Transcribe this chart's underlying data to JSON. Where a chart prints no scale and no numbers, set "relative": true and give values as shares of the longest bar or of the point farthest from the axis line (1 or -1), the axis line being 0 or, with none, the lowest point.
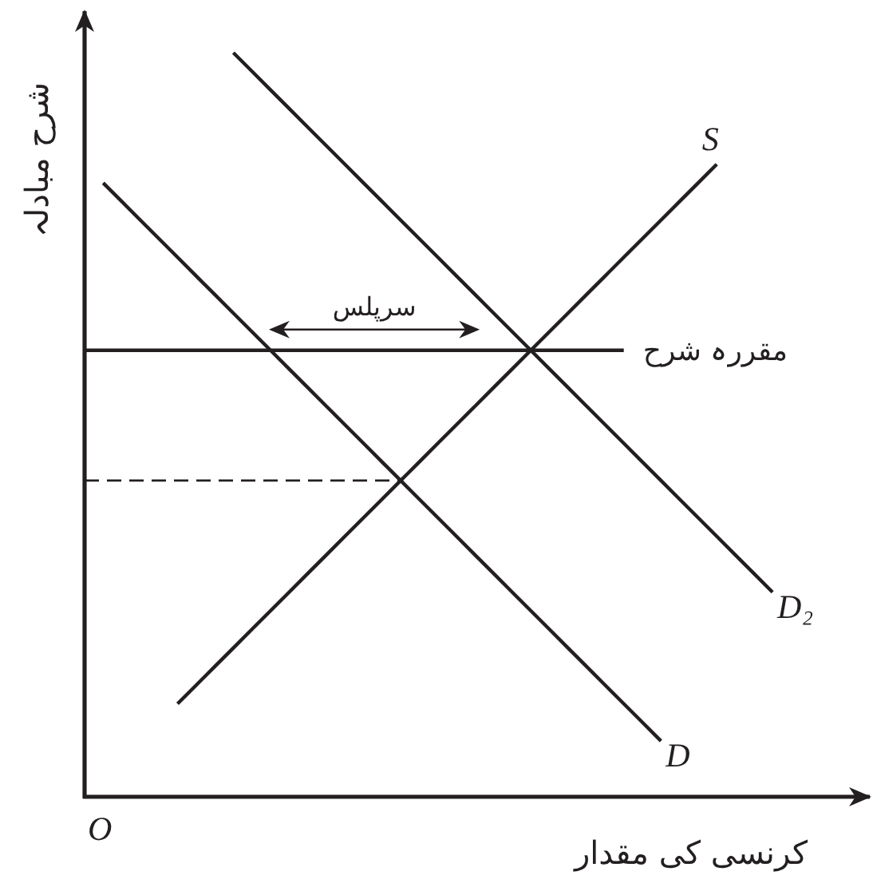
{
  "chart_data": {
    "type": "line",
    "relative": true,
    "xlabel": "کرنسی کی مقدار",
    "ylabel": "شرح مبادلہ",
    "line_style": "solid",
    "categories": [
      null,
      null,
      null,
      null,
      null,
      null,
      null,
      null,
      null,
      null,
      null,
      null,
      null,
      null,
      null,
      null,
      null,
      null,
      null,
      null,
      null,
      null,
      null,
      null,
      null,
      null,
      null,
      null,
      null,
      null,
      null,
      null,
      null,
      null,
      null,
      null,
      null,
      null
    ],
    "series": [
      {
        "name": "D",
        "color": "#231f20",
        "values": [
          null,
          0.825,
          0.8,
          0.775,
          0.75,
          0.725,
          0.7,
          0.675,
          0.65,
          0.625,
          0.6,
          0.575,
          0.55,
          0.525,
          0.5,
          0.475,
          0.45,
          0.425,
          0.4,
          0.375,
          0.35,
          0.325,
          0.3,
          0.275,
          0.25,
          0.225,
          0.2,
          0.175,
          0.15,
          0.125,
          0.1,
          0.075,
          null,
          null,
          null,
          null,
          null,
          null
        ]
      },
      {
        "name": "D₂",
        "color": "#231f20",
        "values": [
          null,
          null,
          null,
          null,
          null,
          null,
          null,
          null,
          1,
          0.975,
          0.95,
          0.925,
          0.9,
          0.875,
          0.85,
          0.825,
          0.8,
          0.775,
          0.75,
          0.725,
          0.7,
          0.675,
          0.65,
          0.625,
          0.6,
          0.575,
          0.55,
          0.525,
          0.5,
          0.475,
          0.45,
          0.425,
          0.4,
          0.375,
          0.35,
          0.325,
          0.3,
          0.275
        ]
      },
      {
        "name": "S",
        "color": "#231f20",
        "values": [
          null,
          null,
          null,
          null,
          null,
          0.125,
          0.15,
          0.175,
          0.2,
          0.225,
          0.25,
          0.275,
          0.3,
          0.325,
          0.35,
          0.375,
          0.4,
          0.425,
          0.45,
          0.475,
          0.5,
          0.525,
          0.55,
          0.575,
          0.6,
          0.625,
          0.65,
          0.675,
          0.7,
          0.725,
          0.75,
          0.775,
          0.8,
          0.825,
          0.85,
          null,
          null,
          null
        ]
      },
      {
        "name": "مقررہ شرح",
        "color": "#231f20",
        "values": [
          0.6,
          0.6,
          0.6,
          0.6,
          0.6,
          0.6,
          0.6,
          0.6,
          0.6,
          0.6,
          0.6,
          0.6,
          0.6,
          0.6,
          0.6,
          0.6,
          0.6,
          0.6,
          0.6,
          0.6,
          0.6,
          0.6,
          0.6,
          0.6,
          0.6,
          0.6,
          0.6,
          0.6,
          0.6,
          0.6,
          null,
          null,
          null,
          null,
          null,
          null,
          null,
          null
        ]
      },
      {
        "color": "#231f20",
        "line_style": "dashed",
        "values": [
          0.425,
          0.425,
          0.425,
          0.425,
          0.425,
          0.425,
          0.425,
          0.425,
          0.425,
          0.425,
          0.425,
          0.425,
          0.425,
          0.425,
          0.425,
          0.425,
          0.425,
          0.425,
          null,
          null,
          null,
          null,
          null,
          null,
          null,
          null,
          null,
          null,
          null,
          null,
          null,
          null,
          null,
          null,
          null,
          null,
          null,
          null
        ]
      }
    ],
    "annotations": [
      {
        "text": "سرپلس",
        "y": 0.6
      },
      "O"
    ]
  }
}
